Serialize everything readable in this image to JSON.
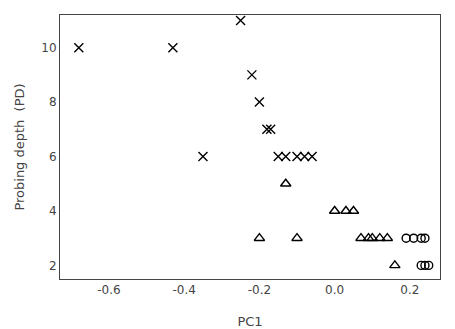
{
  "chart_data": {
    "type": "scatter",
    "xlabel": "PC1",
    "ylabel": "Probing depth  (PD)",
    "xlim": [
      -0.73,
      0.28
    ],
    "ylim": [
      1.5,
      11.2
    ],
    "xticks": [
      -0.6,
      -0.4,
      -0.2,
      {
        "value": 0.0,
        "label": "0.0"
      },
      0.2
    ],
    "yticks": [
      2,
      4,
      6,
      8,
      10
    ],
    "grid": false,
    "series": [
      {
        "marker": "x",
        "color": "black",
        "x": [
          -0.68,
          -0.43,
          -0.25,
          -0.35,
          -0.22,
          -0.2,
          -0.18,
          -0.17,
          -0.15,
          -0.13,
          -0.1,
          -0.08,
          -0.06
        ],
        "values": [
          10,
          10,
          11,
          6,
          9,
          8,
          7,
          7,
          6,
          6,
          6,
          6,
          6
        ]
      },
      {
        "marker": "triangle",
        "color": "black",
        "x": [
          -0.13,
          -0.2,
          -0.1,
          0.0,
          0.03,
          0.05,
          0.07,
          0.09,
          0.1,
          0.12,
          0.14,
          0.16
        ],
        "values": [
          5,
          3,
          3,
          4,
          4,
          4,
          3,
          3,
          3,
          3,
          3,
          2
        ]
      },
      {
        "marker": "circle",
        "color": "black",
        "x": [
          0.19,
          0.21,
          0.23,
          0.24,
          0.23,
          0.24,
          0.25
        ],
        "values": [
          3,
          3,
          3,
          3,
          2,
          2,
          2
        ]
      }
    ]
  }
}
